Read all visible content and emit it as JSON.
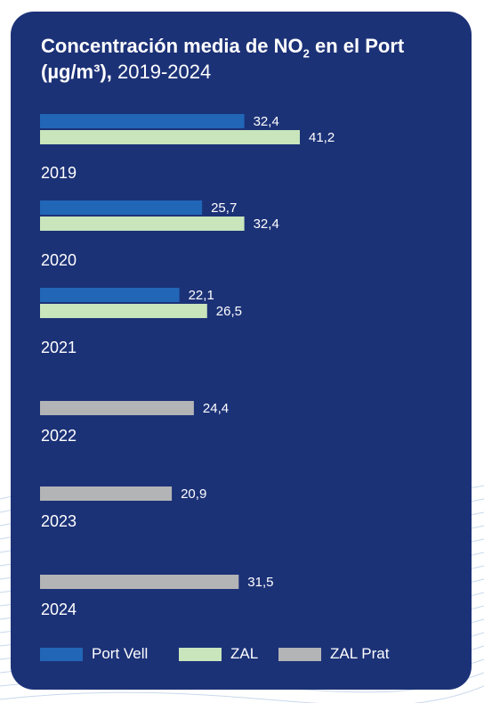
{
  "header": {
    "title_main": "Concentración media de NO",
    "title_sub": "2",
    "title_after": " en el Port (µg/m³),",
    "title_years": " 2019-2024"
  },
  "colors": {
    "background": "#1c3277",
    "port_vell": "#2166b7",
    "zal": "#c8e5bc",
    "zal_prat": "#b3b4b6"
  },
  "chart_data": {
    "type": "bar",
    "orientation": "horizontal",
    "title": "Concentración media de NO2 en el Port (µg/m³), 2019-2024",
    "categories": [
      "2019",
      "2020",
      "2021",
      "2022",
      "2023",
      "2024"
    ],
    "series": [
      {
        "name": "Port Vell",
        "color": "#2166b7",
        "values": [
          32.4,
          25.7,
          22.1,
          null,
          null,
          null
        ],
        "labels": [
          "32,4",
          "25,7",
          "22,1",
          null,
          null,
          null
        ]
      },
      {
        "name": "ZAL",
        "color": "#c8e5bc",
        "values": [
          41.2,
          32.4,
          26.5,
          null,
          null,
          null
        ],
        "labels": [
          "41,2",
          "32,4",
          "26,5",
          null,
          null,
          null
        ]
      },
      {
        "name": "ZAL Prat",
        "color": "#b3b4b6",
        "values": [
          null,
          null,
          null,
          24.4,
          20.9,
          31.5
        ],
        "labels": [
          null,
          null,
          null,
          "24,4",
          "20,9",
          "31,5"
        ]
      }
    ],
    "xlim": [
      0,
      41.2
    ],
    "grid": false,
    "legend_position": "bottom-left"
  },
  "legend": [
    {
      "label": "Port Vell",
      "color": "#2166b7"
    },
    {
      "label": "ZAL",
      "color": "#c8e5bc"
    },
    {
      "label": "ZAL Prat",
      "color": "#b3b4b6"
    }
  ]
}
